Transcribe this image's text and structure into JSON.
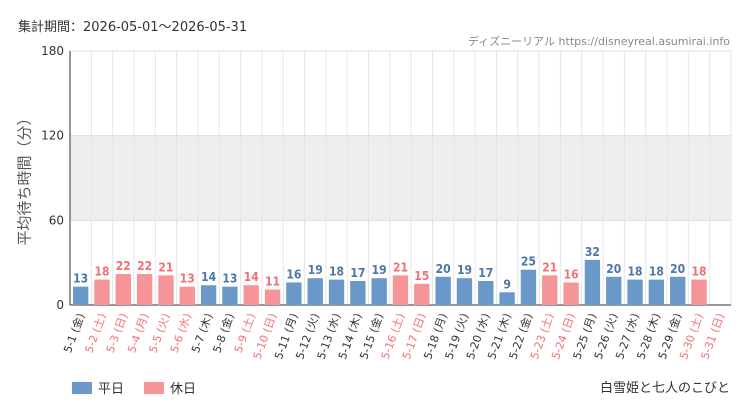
{
  "header": {
    "period": "集計期間：2026-05-01～2026-05-31",
    "source": "ディズニーリアル https://disneyreal.asumirai.info"
  },
  "attraction": "白雪姫と七人のこびと",
  "colors": {
    "weekday": "#6a98c8",
    "holiday": "#f59597",
    "weekday_label": "#4a78aa",
    "holiday_label": "#f07074"
  },
  "chart_data": {
    "type": "bar",
    "ylabel": "平均待ち時間（分）",
    "ylim": [
      0,
      180
    ],
    "yticks": [
      0,
      60,
      120,
      180
    ],
    "shaded_band": [
      60,
      120
    ],
    "grid": true,
    "legend": {
      "placement": "bottom-left",
      "entries": [
        {
          "key": "weekday",
          "label": "平日"
        },
        {
          "key": "holiday",
          "label": "休日"
        }
      ]
    },
    "categories": [
      "5-1 (金)",
      "5-2 (土)",
      "5-3 (日)",
      "5-4 (月)",
      "5-5 (火)",
      "5-6 (水)",
      "5-7 (木)",
      "5-8 (金)",
      "5-9 (土)",
      "5-10 (日)",
      "5-11 (月)",
      "5-12 (火)",
      "5-13 (水)",
      "5-14 (木)",
      "5-15 (金)",
      "5-16 (土)",
      "5-17 (日)",
      "5-18 (月)",
      "5-19 (火)",
      "5-20 (水)",
      "5-21 (木)",
      "5-22 (金)",
      "5-23 (土)",
      "5-24 (日)",
      "5-25 (月)",
      "5-26 (火)",
      "5-27 (水)",
      "5-28 (木)",
      "5-29 (金)",
      "5-30 (土)",
      "5-31 (日)"
    ],
    "values": [
      13,
      18,
      22,
      22,
      21,
      13,
      14,
      13,
      14,
      11,
      16,
      19,
      18,
      17,
      19,
      21,
      15,
      20,
      19,
      17,
      9,
      25,
      21,
      16,
      32,
      20,
      18,
      18,
      20,
      18,
      null
    ],
    "day_type": [
      "weekday",
      "holiday",
      "holiday",
      "holiday",
      "holiday",
      "holiday",
      "weekday",
      "weekday",
      "holiday",
      "holiday",
      "weekday",
      "weekday",
      "weekday",
      "weekday",
      "weekday",
      "holiday",
      "holiday",
      "weekday",
      "weekday",
      "weekday",
      "weekday",
      "weekday",
      "holiday",
      "holiday",
      "weekday",
      "weekday",
      "weekday",
      "weekday",
      "weekday",
      "holiday",
      "holiday"
    ]
  }
}
